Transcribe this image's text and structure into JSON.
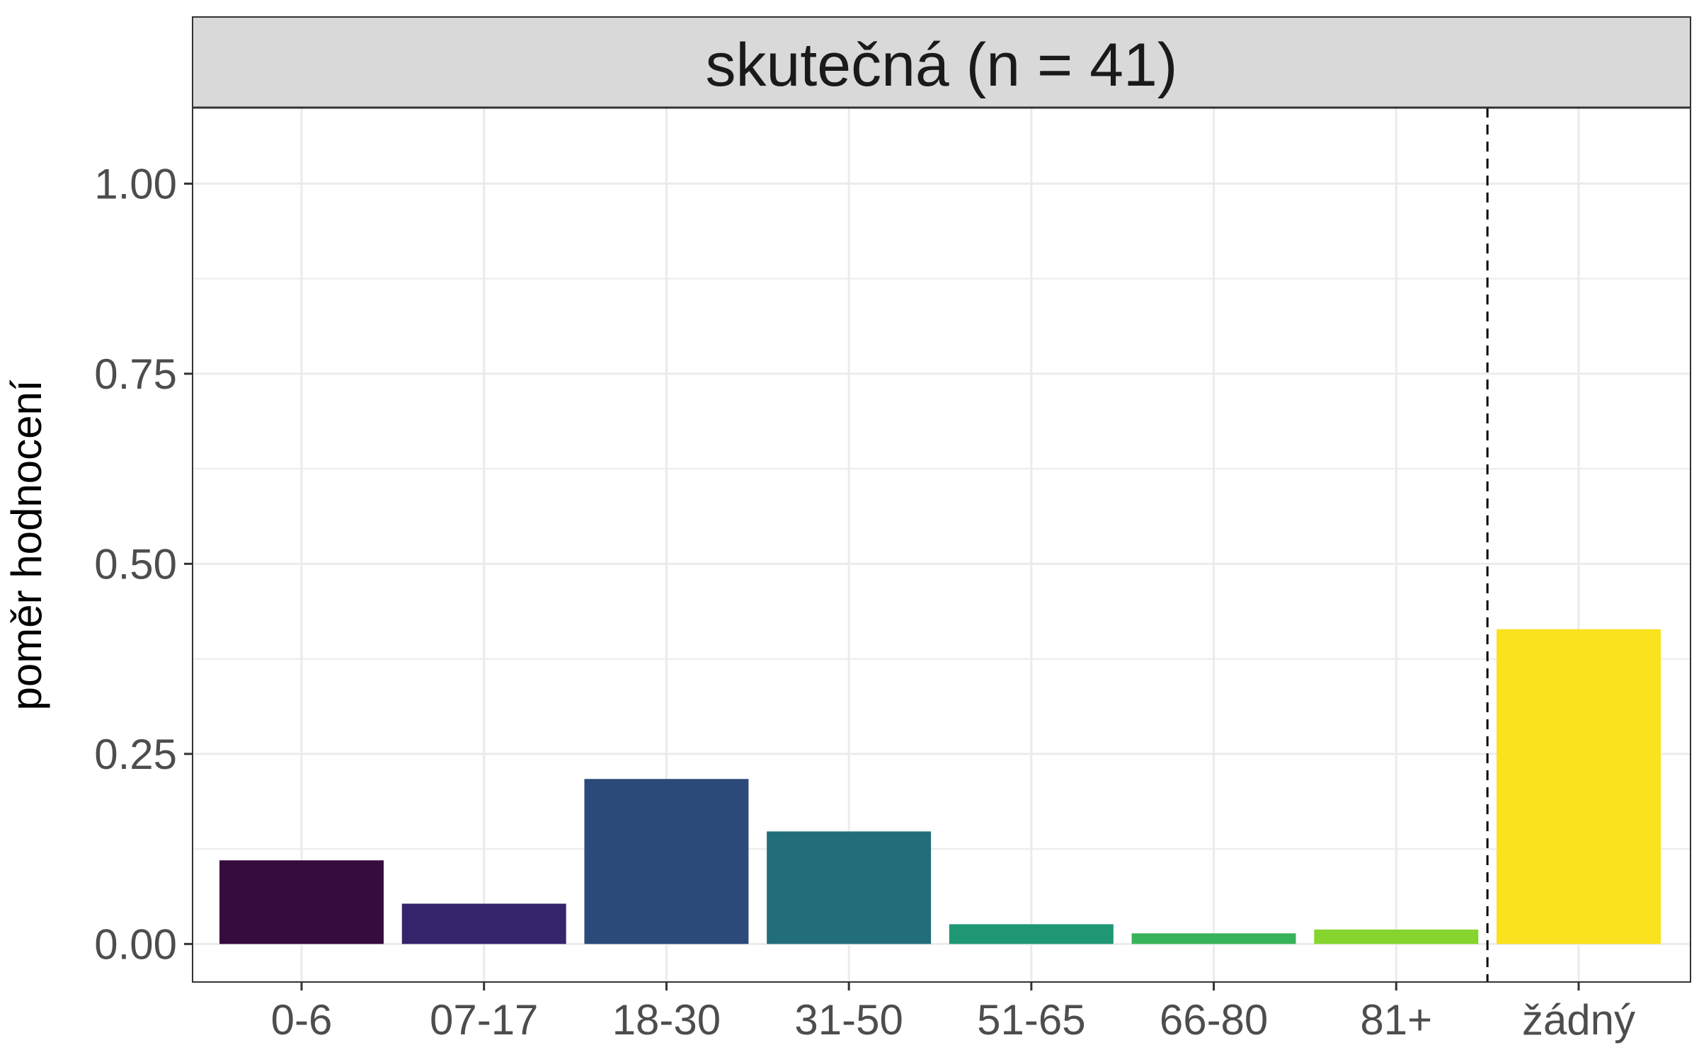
{
  "chart_data": {
    "type": "bar",
    "title": "",
    "facet_label": "skutečná (n = 41)",
    "xlabel": "",
    "ylabel": "poměr hodnocení",
    "categories": [
      "0-6",
      "07-17",
      "18-30",
      "31-50",
      "51-65",
      "66-80",
      "81+",
      "žádný"
    ],
    "values": [
      0.11,
      0.053,
      0.217,
      0.148,
      0.026,
      0.014,
      0.019,
      0.414
    ],
    "colors": [
      "#360B3E",
      "#35236C",
      "#2B4A79",
      "#216E7A",
      "#209774",
      "#39B35A",
      "#86D42E",
      "#FAE21E"
    ],
    "ylim": [
      -0.05,
      1.1
    ],
    "yticks": [
      0.0,
      0.25,
      0.5,
      0.75,
      1.0
    ],
    "ytick_labels": [
      "0.00",
      "0.25",
      "0.50",
      "0.75",
      "1.00"
    ],
    "divider_after_category": "81+",
    "grid": true,
    "legend": "none"
  }
}
